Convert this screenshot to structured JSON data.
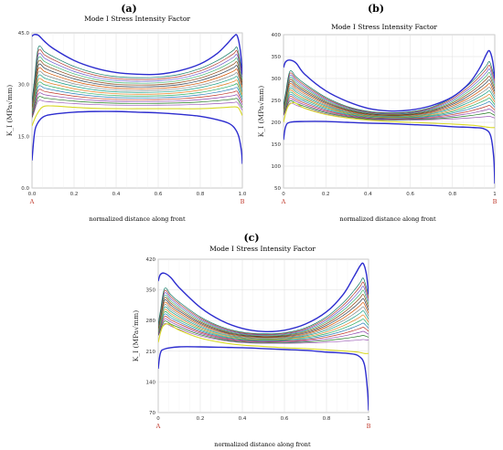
{
  "chart_data": [
    {
      "panel": "(a)",
      "type": "line",
      "title": "Mode I Stress Intensity Factor",
      "xlabel": "normalized distance along front",
      "ylabel": "K_I (MPa√mm)",
      "endpoints": [
        "A",
        "B"
      ],
      "xlim": [
        0,
        1
      ],
      "ylim": [
        0,
        45
      ],
      "xticks": [
        "0.0",
        "0.2",
        "0.4",
        "0.6",
        "0.8",
        "1.0"
      ],
      "yticks": [
        "0.0",
        "15.0",
        "30.0",
        "45.0"
      ],
      "grid": true,
      "series": [
        {
          "color": "#2d2dcf",
          "values": [
            [
              0,
              8
            ],
            [
              0.01,
              15
            ],
            [
              0.02,
              18
            ],
            [
              0.05,
              20.5
            ],
            [
              0.1,
              21.4
            ],
            [
              0.2,
              22
            ],
            [
              0.3,
              22.2
            ],
            [
              0.4,
              22.2
            ],
            [
              0.5,
              22
            ],
            [
              0.6,
              21.8
            ],
            [
              0.7,
              21.4
            ],
            [
              0.8,
              20.8
            ],
            [
              0.9,
              19.5
            ],
            [
              0.95,
              18.2
            ],
            [
              0.98,
              15.5
            ],
            [
              0.995,
              11
            ],
            [
              1,
              7
            ]
          ]
        },
        {
          "color": "#d8d826",
          "values": [
            [
              0,
              18
            ],
            [
              0.02,
              21
            ],
            [
              0.05,
              23.5
            ],
            [
              0.1,
              23.8
            ],
            [
              0.2,
              23.4
            ],
            [
              0.3,
              23.1
            ],
            [
              0.4,
              23
            ],
            [
              0.5,
              23
            ],
            [
              0.6,
              23
            ],
            [
              0.7,
              23
            ],
            [
              0.8,
              23
            ],
            [
              0.9,
              23.3
            ],
            [
              0.95,
              23.5
            ],
            [
              0.98,
              23.3
            ],
            [
              1,
              21
            ]
          ]
        },
        {
          "color": "#2d2dcf",
          "values": [
            [
              0,
              44
            ],
            [
              0.01,
              44.5
            ],
            [
              0.03,
              44.3
            ],
            [
              0.06,
              42.5
            ],
            [
              0.1,
              40.5
            ],
            [
              0.2,
              37
            ],
            [
              0.3,
              34.8
            ],
            [
              0.4,
              33.5
            ],
            [
              0.5,
              33
            ],
            [
              0.6,
              33
            ],
            [
              0.7,
              34
            ],
            [
              0.8,
              36
            ],
            [
              0.88,
              39
            ],
            [
              0.93,
              42
            ],
            [
              0.96,
              44
            ],
            [
              0.975,
              44.2
            ],
            [
              0.99,
              40
            ],
            [
              1,
              33
            ]
          ]
        }
      ],
      "family": {
        "lower_start": 25.5,
        "lower_mid": 24,
        "lower_end": 25,
        "upper_start": 42,
        "upper_mid": 32,
        "upper_end": 42,
        "count": 16
      }
    },
    {
      "panel": "(b)",
      "type": "line",
      "title": "Mode I Stress Intensity Factor",
      "xlabel": "normalized distance along front",
      "ylabel": "K_I (MPa√mm)",
      "endpoints": [
        "A",
        "B"
      ],
      "xlim": [
        0,
        1
      ],
      "ylim": [
        50,
        400
      ],
      "xticks": [
        "0",
        "0.2",
        "0.4",
        "0.6",
        "0.8",
        "1"
      ],
      "yticks": [
        "50",
        "100",
        "150",
        "200",
        "250",
        "300",
        "350",
        "400"
      ],
      "grid": true,
      "series": [
        {
          "color": "#2d2dcf",
          "values": [
            [
              0,
              160
            ],
            [
              0.01,
              190
            ],
            [
              0.03,
              200
            ],
            [
              0.1,
              202
            ],
            [
              0.2,
              202
            ],
            [
              0.3,
              200
            ],
            [
              0.4,
              198
            ],
            [
              0.5,
              197
            ],
            [
              0.6,
              195
            ],
            [
              0.7,
              193
            ],
            [
              0.8,
              190
            ],
            [
              0.9,
              188
            ],
            [
              0.95,
              185
            ],
            [
              0.98,
              170
            ],
            [
              0.995,
              120
            ],
            [
              1,
              60
            ]
          ]
        },
        {
          "color": "#d8d826",
          "values": [
            [
              0,
              200
            ],
            [
              0.02,
              235
            ],
            [
              0.05,
              245
            ],
            [
              0.1,
              232
            ],
            [
              0.2,
              218
            ],
            [
              0.3,
              210
            ],
            [
              0.4,
              205
            ],
            [
              0.5,
              202
            ],
            [
              0.6,
              200
            ],
            [
              0.7,
              198
            ],
            [
              0.8,
              196
            ],
            [
              0.9,
              193
            ],
            [
              0.95,
              190
            ],
            [
              0.98,
              188
            ],
            [
              1,
              188
            ]
          ]
        },
        {
          "color": "#2d2dcf",
          "values": [
            [
              0,
              325
            ],
            [
              0.01,
              338
            ],
            [
              0.03,
              342
            ],
            [
              0.06,
              335
            ],
            [
              0.1,
              310
            ],
            [
              0.2,
              272
            ],
            [
              0.3,
              248
            ],
            [
              0.4,
              232
            ],
            [
              0.5,
              226
            ],
            [
              0.6,
              228
            ],
            [
              0.7,
              238
            ],
            [
              0.8,
              258
            ],
            [
              0.88,
              290
            ],
            [
              0.93,
              325
            ],
            [
              0.96,
              355
            ],
            [
              0.975,
              363
            ],
            [
              0.99,
              340
            ],
            [
              1,
              300
            ]
          ]
        }
      ],
      "family": {
        "lower_start": 250,
        "lower_mid": 205,
        "lower_end": 215,
        "upper_start": 330,
        "upper_mid": 222,
        "upper_end": 355,
        "count": 16
      }
    },
    {
      "panel": "(c)",
      "type": "line",
      "title": "Mode I Stress Intensity Factor",
      "xlabel": "normalized distance along front",
      "ylabel": "K_I (MPa√mm)",
      "endpoints": [
        "A",
        "B"
      ],
      "xlim": [
        0,
        1
      ],
      "ylim": [
        70,
        420
      ],
      "xticks": [
        "0",
        "0.2",
        "0.4",
        "0.6",
        "0.8",
        "1"
      ],
      "yticks": [
        "70",
        "140",
        "210",
        "280",
        "350",
        "420"
      ],
      "grid": true,
      "series": [
        {
          "color": "#2d2dcf",
          "values": [
            [
              0,
              170
            ],
            [
              0.01,
              205
            ],
            [
              0.03,
              215
            ],
            [
              0.1,
              220
            ],
            [
              0.2,
              220
            ],
            [
              0.3,
              219
            ],
            [
              0.4,
              218
            ],
            [
              0.5,
              216
            ],
            [
              0.6,
              214
            ],
            [
              0.7,
              212
            ],
            [
              0.8,
              208
            ],
            [
              0.9,
              205
            ],
            [
              0.95,
              200
            ],
            [
              0.98,
              180
            ],
            [
              0.995,
              120
            ],
            [
              1,
              75
            ]
          ]
        },
        {
          "color": "#d8d826",
          "values": [
            [
              0,
              230
            ],
            [
              0.02,
              265
            ],
            [
              0.05,
              272
            ],
            [
              0.1,
              258
            ],
            [
              0.2,
              240
            ],
            [
              0.3,
              230
            ],
            [
              0.4,
              224
            ],
            [
              0.5,
              221
            ],
            [
              0.6,
              218
            ],
            [
              0.7,
              216
            ],
            [
              0.8,
              213
            ],
            [
              0.9,
              210
            ],
            [
              0.95,
              208
            ],
            [
              0.98,
              205
            ],
            [
              1,
              205
            ]
          ]
        },
        {
          "color": "#2d2dcf",
          "values": [
            [
              0,
              370
            ],
            [
              0.01,
              385
            ],
            [
              0.03,
              388
            ],
            [
              0.06,
              378
            ],
            [
              0.1,
              355
            ],
            [
              0.2,
              310
            ],
            [
              0.3,
              280
            ],
            [
              0.4,
              262
            ],
            [
              0.5,
              255
            ],
            [
              0.6,
              258
            ],
            [
              0.7,
              272
            ],
            [
              0.8,
              300
            ],
            [
              0.88,
              340
            ],
            [
              0.93,
              380
            ],
            [
              0.96,
              405
            ],
            [
              0.975,
              410
            ],
            [
              0.99,
              385
            ],
            [
              1,
              340
            ]
          ]
        }
      ],
      "family": {
        "lower_start": 280,
        "lower_mid": 228,
        "lower_end": 238,
        "upper_start": 368,
        "upper_mid": 250,
        "upper_end": 395,
        "count": 16
      }
    }
  ]
}
